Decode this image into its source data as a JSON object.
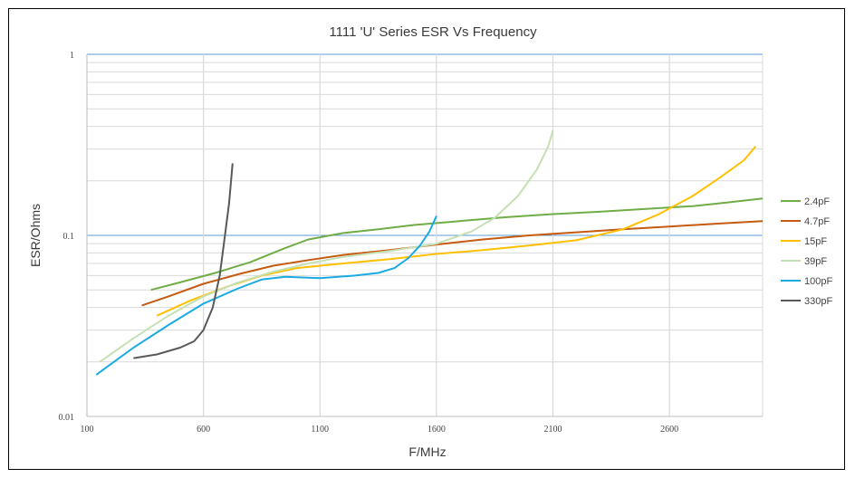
{
  "chart_data": {
    "type": "line",
    "title": "1111 'U' Series ESR Vs Frequency",
    "xlabel": "F/MHz",
    "ylabel": "ESR/Ohms",
    "xlim": [
      100,
      3000
    ],
    "ylim": [
      0.01,
      1
    ],
    "y_scale": "log",
    "x_ticks": [
      100,
      600,
      1100,
      1600,
      2100,
      2600
    ],
    "y_tick_labels": [
      "1",
      "0.1",
      "0.01"
    ],
    "grid": true,
    "legend_position": "right",
    "series": [
      {
        "name": "2.4pF",
        "color": "#70ad47",
        "points": [
          [
            375,
            0.05
          ],
          [
            500,
            0.055
          ],
          [
            650,
            0.062
          ],
          [
            800,
            0.071
          ],
          [
            950,
            0.085
          ],
          [
            1050,
            0.095
          ],
          [
            1200,
            0.103
          ],
          [
            1350,
            0.108
          ],
          [
            1500,
            0.114
          ],
          [
            1700,
            0.12
          ],
          [
            1900,
            0.126
          ],
          [
            2100,
            0.131
          ],
          [
            2300,
            0.135
          ],
          [
            2500,
            0.14
          ],
          [
            2700,
            0.145
          ],
          [
            2850,
            0.152
          ],
          [
            3000,
            0.16
          ]
        ]
      },
      {
        "name": "4.7pF",
        "color": "#c55a11",
        "points": [
          [
            335,
            0.041
          ],
          [
            450,
            0.046
          ],
          [
            600,
            0.054
          ],
          [
            750,
            0.061
          ],
          [
            900,
            0.068
          ],
          [
            1050,
            0.073
          ],
          [
            1200,
            0.078
          ],
          [
            1400,
            0.083
          ],
          [
            1600,
            0.089
          ],
          [
            1800,
            0.095
          ],
          [
            2000,
            0.1
          ],
          [
            2200,
            0.104
          ],
          [
            2400,
            0.108
          ],
          [
            2600,
            0.112
          ],
          [
            2800,
            0.116
          ],
          [
            3000,
            0.12
          ]
        ]
      },
      {
        "name": "15pF",
        "color": "#ffc000",
        "points": [
          [
            400,
            0.036
          ],
          [
            550,
            0.044
          ],
          [
            700,
            0.052
          ],
          [
            850,
            0.06
          ],
          [
            1000,
            0.066
          ],
          [
            1200,
            0.07
          ],
          [
            1400,
            0.074
          ],
          [
            1600,
            0.079
          ],
          [
            1800,
            0.083
          ],
          [
            2000,
            0.088
          ],
          [
            2200,
            0.094
          ],
          [
            2400,
            0.108
          ],
          [
            2550,
            0.13
          ],
          [
            2700,
            0.165
          ],
          [
            2820,
            0.21
          ],
          [
            2920,
            0.26
          ],
          [
            2970,
            0.31
          ]
        ]
      },
      {
        "name": "39pF",
        "color": "#c5e0b4",
        "points": [
          [
            155,
            0.02
          ],
          [
            300,
            0.027
          ],
          [
            450,
            0.036
          ],
          [
            600,
            0.046
          ],
          [
            750,
            0.055
          ],
          [
            900,
            0.063
          ],
          [
            1050,
            0.07
          ],
          [
            1200,
            0.076
          ],
          [
            1400,
            0.082
          ],
          [
            1600,
            0.09
          ],
          [
            1750,
            0.105
          ],
          [
            1850,
            0.125
          ],
          [
            1950,
            0.165
          ],
          [
            2030,
            0.23
          ],
          [
            2080,
            0.31
          ],
          [
            2100,
            0.38
          ]
        ]
      },
      {
        "name": "100pF",
        "color": "#1baae1",
        "points": [
          [
            140,
            0.017
          ],
          [
            300,
            0.024
          ],
          [
            450,
            0.032
          ],
          [
            600,
            0.042
          ],
          [
            750,
            0.051
          ],
          [
            850,
            0.057
          ],
          [
            950,
            0.059
          ],
          [
            1100,
            0.058
          ],
          [
            1250,
            0.06
          ],
          [
            1350,
            0.062
          ],
          [
            1420,
            0.066
          ],
          [
            1480,
            0.075
          ],
          [
            1530,
            0.088
          ],
          [
            1570,
            0.105
          ],
          [
            1600,
            0.128
          ]
        ]
      },
      {
        "name": "330pF",
        "color": "#595959",
        "points": [
          [
            300,
            0.021
          ],
          [
            400,
            0.022
          ],
          [
            500,
            0.024
          ],
          [
            560,
            0.026
          ],
          [
            600,
            0.03
          ],
          [
            640,
            0.04
          ],
          [
            670,
            0.06
          ],
          [
            690,
            0.095
          ],
          [
            710,
            0.15
          ],
          [
            725,
            0.25
          ]
        ]
      }
    ]
  }
}
